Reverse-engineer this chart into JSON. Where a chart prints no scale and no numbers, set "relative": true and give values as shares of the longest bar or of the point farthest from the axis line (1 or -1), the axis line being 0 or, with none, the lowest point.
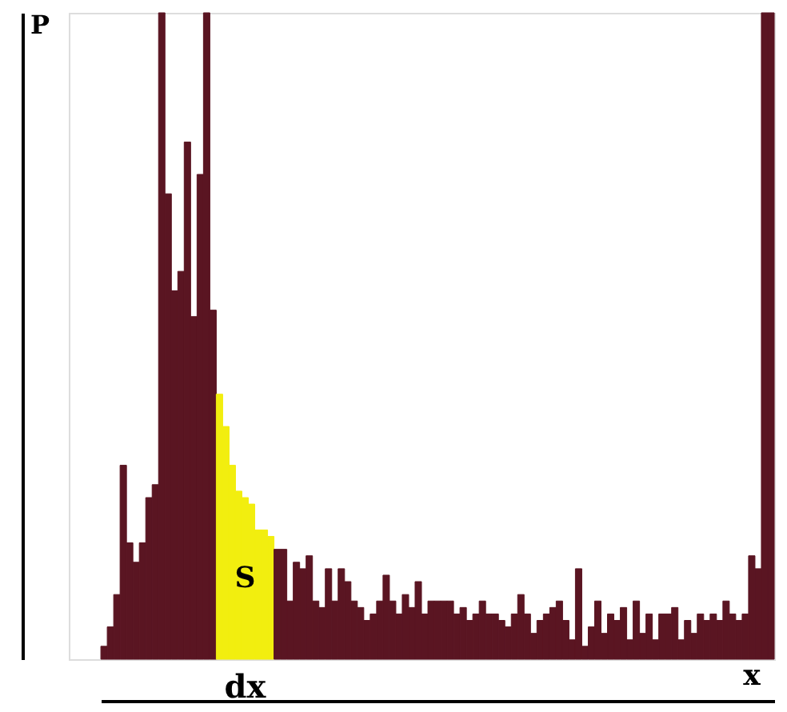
{
  "chart_data": {
    "type": "bar",
    "relative": true,
    "xlabel": "x",
    "ylabel": "P",
    "categories": [
      null,
      null,
      null,
      null,
      null,
      null,
      null,
      null,
      null,
      null,
      null,
      null,
      null,
      null,
      null,
      null,
      null,
      null,
      null,
      null,
      null,
      null,
      null,
      null,
      null,
      null,
      null,
      null,
      null,
      null,
      null,
      null,
      null,
      null,
      null,
      null,
      null,
      null,
      null,
      null,
      null,
      null,
      null,
      null,
      null,
      null,
      null,
      null,
      null,
      null,
      null,
      null,
      null,
      null,
      null,
      null,
      null,
      null,
      null,
      null,
      null,
      null,
      null,
      null,
      null,
      null,
      null,
      null,
      null,
      null,
      null,
      null,
      null,
      null,
      null,
      null,
      null,
      null,
      null,
      null,
      null,
      null,
      null,
      null,
      null,
      null,
      null,
      null,
      null,
      null,
      null,
      null,
      null,
      null,
      null,
      null,
      null,
      null,
      null,
      null,
      null,
      null,
      null,
      null,
      null
    ],
    "values": [
      0.02,
      0.05,
      0.1,
      0.3,
      0.18,
      0.15,
      0.18,
      0.25,
      0.27,
      1.0,
      0.72,
      0.57,
      0.6,
      0.8,
      0.53,
      0.75,
      1.0,
      0.54,
      0.41,
      0.36,
      0.3,
      0.26,
      0.25,
      0.24,
      0.2,
      0.2,
      0.19,
      0.17,
      0.17,
      0.09,
      0.15,
      0.14,
      0.16,
      0.09,
      0.08,
      0.14,
      0.09,
      0.14,
      0.12,
      0.09,
      0.08,
      0.06,
      0.07,
      0.09,
      0.13,
      0.09,
      0.07,
      0.1,
      0.08,
      0.12,
      0.07,
      0.09,
      0.09,
      0.09,
      0.09,
      0.07,
      0.08,
      0.06,
      0.07,
      0.09,
      0.07,
      0.07,
      0.06,
      0.05,
      0.07,
      0.1,
      0.07,
      0.04,
      0.06,
      0.07,
      0.08,
      0.09,
      0.06,
      0.03,
      0.14,
      0.02,
      0.05,
      0.09,
      0.04,
      0.07,
      0.06,
      0.08,
      0.03,
      0.09,
      0.04,
      0.07,
      0.03,
      0.07,
      0.07,
      0.08,
      0.03,
      0.06,
      0.04,
      0.07,
      0.06,
      0.07,
      0.06,
      0.09,
      0.07,
      0.06,
      0.07,
      0.16,
      0.14,
      1.0,
      1.0
    ],
    "colors": [
      "#5a1522",
      "#5a1522",
      "#5a1522",
      "#5a1522",
      "#5a1522",
      "#5a1522",
      "#5a1522",
      "#5a1522",
      "#5a1522",
      "#5a1522",
      "#5a1522",
      "#5a1522",
      "#5a1522",
      "#5a1522",
      "#5a1522",
      "#5a1522",
      "#5a1522",
      "#5a1522",
      "#f2ee0f",
      "#f2ee0f",
      "#f2ee0f",
      "#f2ee0f",
      "#f2ee0f",
      "#f2ee0f",
      "#f2ee0f",
      "#f2ee0f",
      "#f2ee0f",
      "#5a1522",
      "#5a1522",
      "#5a1522",
      "#5a1522",
      "#5a1522",
      "#5a1522",
      "#5a1522",
      "#5a1522",
      "#5a1522",
      "#5a1522",
      "#5a1522",
      "#5a1522",
      "#5a1522",
      "#5a1522",
      "#5a1522",
      "#5a1522",
      "#5a1522",
      "#5a1522",
      "#5a1522",
      "#5a1522",
      "#5a1522",
      "#5a1522",
      "#5a1522",
      "#5a1522",
      "#5a1522",
      "#5a1522",
      "#5a1522",
      "#5a1522",
      "#5a1522",
      "#5a1522",
      "#5a1522",
      "#5a1522",
      "#5a1522",
      "#5a1522",
      "#5a1522",
      "#5a1522",
      "#5a1522",
      "#5a1522",
      "#5a1522",
      "#5a1522",
      "#5a1522",
      "#5a1522",
      "#5a1522",
      "#5a1522",
      "#5a1522",
      "#5a1522",
      "#5a1522",
      "#5a1522",
      "#5a1522",
      "#5a1522",
      "#5a1522",
      "#5a1522",
      "#5a1522",
      "#5a1522",
      "#5a1522",
      "#5a1522",
      "#5a1522",
      "#5a1522",
      "#5a1522",
      "#5a1522",
      "#5a1522",
      "#5a1522",
      "#5a1522",
      "#5a1522",
      "#5a1522",
      "#5a1522",
      "#5a1522",
      "#5a1522",
      "#5a1522",
      "#5a1522",
      "#5a1522",
      "#5a1522",
      "#5a1522",
      "#5a1522",
      "#5a1522",
      "#5a1522",
      "#5a1522",
      "#5a1522"
    ],
    "annotations": [
      "S",
      "dx"
    ]
  }
}
